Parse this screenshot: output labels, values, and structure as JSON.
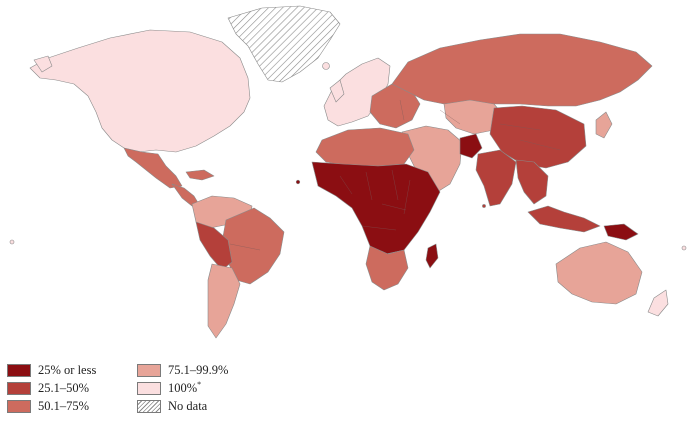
{
  "legend": {
    "items": [
      {
        "label": "25% or less",
        "color": "#8b0e12"
      },
      {
        "label": "25.1–50%",
        "color": "#b4403a"
      },
      {
        "label": "50.1–75%",
        "color": "#cd6b5e"
      },
      {
        "label": "75.1–99.9%",
        "color": "#e7a498"
      },
      {
        "label": "100%",
        "sup": "*",
        "color": "#fbdfe0"
      },
      {
        "label": "No data",
        "color": "hatched"
      }
    ]
  },
  "map": {
    "regions": [
      {
        "name": "greenland",
        "category": "No data"
      },
      {
        "name": "north-america",
        "category": "100%"
      },
      {
        "name": "mexico",
        "category": "50.1–75%"
      },
      {
        "name": "central-america",
        "category": "50.1–75%"
      },
      {
        "name": "colombia-venezuela",
        "category": "75.1–99.9%"
      },
      {
        "name": "brazil",
        "category": "50.1–75%"
      },
      {
        "name": "peru-bolivia",
        "category": "25.1–50%"
      },
      {
        "name": "southern-cone",
        "category": "75.1–99.9%"
      },
      {
        "name": "western-europe",
        "category": "100%"
      },
      {
        "name": "eastern-europe",
        "category": "50.1–75%"
      },
      {
        "name": "russia",
        "category": "50.1–75%"
      },
      {
        "name": "north-africa",
        "category": "50.1–75%"
      },
      {
        "name": "sub-saharan-africa",
        "category": "25% or less"
      },
      {
        "name": "southern-africa",
        "category": "50.1–75%"
      },
      {
        "name": "madagascar",
        "category": "25% or less"
      },
      {
        "name": "middle-east",
        "category": "75.1–99.9%"
      },
      {
        "name": "afghanistan",
        "category": "25% or less"
      },
      {
        "name": "kazakhstan",
        "category": "75.1–99.9%"
      },
      {
        "name": "china",
        "category": "25.1–50%"
      },
      {
        "name": "india",
        "category": "25.1–50%"
      },
      {
        "name": "southeast-asia",
        "category": "25.1–50%"
      },
      {
        "name": "indonesia",
        "category": "25.1–50%"
      },
      {
        "name": "papua-new-guinea",
        "category": "25% or less"
      },
      {
        "name": "japan",
        "category": "75.1–99.9%"
      },
      {
        "name": "australia",
        "category": "75.1–99.9%"
      },
      {
        "name": "new-zealand",
        "category": "100%"
      }
    ]
  }
}
